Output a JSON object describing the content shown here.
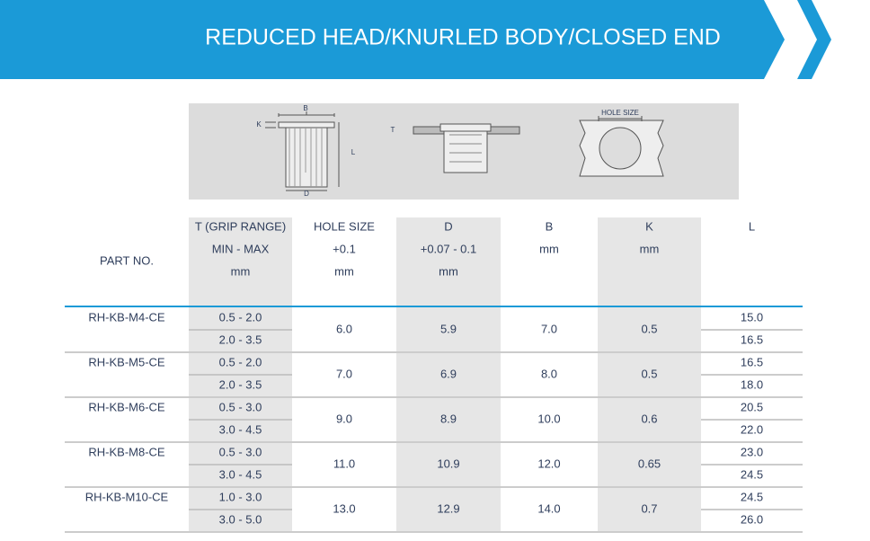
{
  "header": {
    "title": "REDUCED HEAD/KNURLED BODY/CLOSED END"
  },
  "diagram": {
    "labels": [
      "B",
      "K",
      "L",
      "D",
      "T",
      "HOLE SIZE"
    ]
  },
  "table": {
    "headers": [
      [
        "PART NO."
      ],
      [
        "T (GRIP RANGE)",
        "MIN - MAX",
        "mm"
      ],
      [
        "HOLE SIZE",
        "+0.1",
        "mm"
      ],
      [
        "D",
        "+0.07 - 0.1",
        "mm"
      ],
      [
        "B",
        "mm"
      ],
      [
        "K",
        "mm"
      ],
      [
        "L"
      ]
    ],
    "rows": [
      {
        "part": "RH-KB-M4-CE",
        "grip": [
          "0.5 - 2.0",
          "2.0 - 3.5"
        ],
        "hole": "6.0",
        "d": "5.9",
        "b": "7.0",
        "k": "0.5",
        "l": [
          "15.0",
          "16.5"
        ]
      },
      {
        "part": "RH-KB-M5-CE",
        "grip": [
          "0.5 - 2.0",
          "2.0 - 3.5"
        ],
        "hole": "7.0",
        "d": "6.9",
        "b": "8.0",
        "k": "0.5",
        "l": [
          "16.5",
          "18.0"
        ]
      },
      {
        "part": "RH-KB-M6-CE",
        "grip": [
          "0.5 - 3.0",
          "3.0 - 4.5"
        ],
        "hole": "9.0",
        "d": "8.9",
        "b": "10.0",
        "k": "0.6",
        "l": [
          "20.5",
          "22.0"
        ]
      },
      {
        "part": "RH-KB-M8-CE",
        "grip": [
          "0.5 - 3.0",
          "3.0 - 4.5"
        ],
        "hole": "11.0",
        "d": "10.9",
        "b": "12.0",
        "k": "0.65",
        "l": [
          "23.0",
          "24.5"
        ]
      },
      {
        "part": "RH-KB-M10-CE",
        "grip": [
          "1.0 - 3.0",
          "3.0 - 5.0"
        ],
        "hole": "13.0",
        "d": "12.9",
        "b": "14.0",
        "k": "0.7",
        "l": [
          "24.5",
          "26.0"
        ]
      }
    ]
  }
}
